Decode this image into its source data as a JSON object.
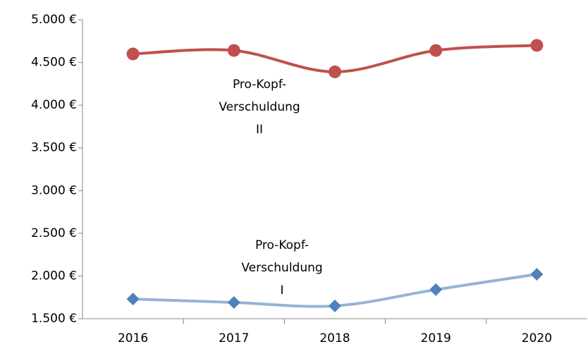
{
  "chart_data": {
    "type": "line",
    "categories": [
      "2016",
      "2017",
      "2018",
      "2019",
      "2020"
    ],
    "series": [
      {
        "name": "Pro-Kopf-Verschuldung II",
        "label": [
          "Pro-Kopf-",
          "Verschuldung",
          "II"
        ],
        "color": "#c0504d",
        "marker_color": "#c0504d",
        "marker": "circle",
        "values": [
          4600,
          4640,
          4390,
          4640,
          4700
        ]
      },
      {
        "name": "Pro-Kopf-Verschuldung I",
        "label": [
          "Pro-Kopf-",
          "Verschuldung",
          "I"
        ],
        "color": "#95b3d7",
        "marker_color": "#4f81bd",
        "marker": "diamond",
        "values": [
          1730,
          1690,
          1650,
          1840,
          2020
        ]
      }
    ],
    "ylim": [
      1500,
      5000
    ],
    "yticks": [
      {
        "value": 1500,
        "label": "1.500 €"
      },
      {
        "value": 2000,
        "label": "2.000 €"
      },
      {
        "value": 2500,
        "label": "2.500 €"
      },
      {
        "value": 3000,
        "label": "3.000 €"
      },
      {
        "value": 3500,
        "label": "3.500 €"
      },
      {
        "value": 4000,
        "label": "4.000 €"
      },
      {
        "value": 4500,
        "label": "4.500 €"
      },
      {
        "value": 5000,
        "label": "5.000 €"
      }
    ],
    "grid": false
  }
}
